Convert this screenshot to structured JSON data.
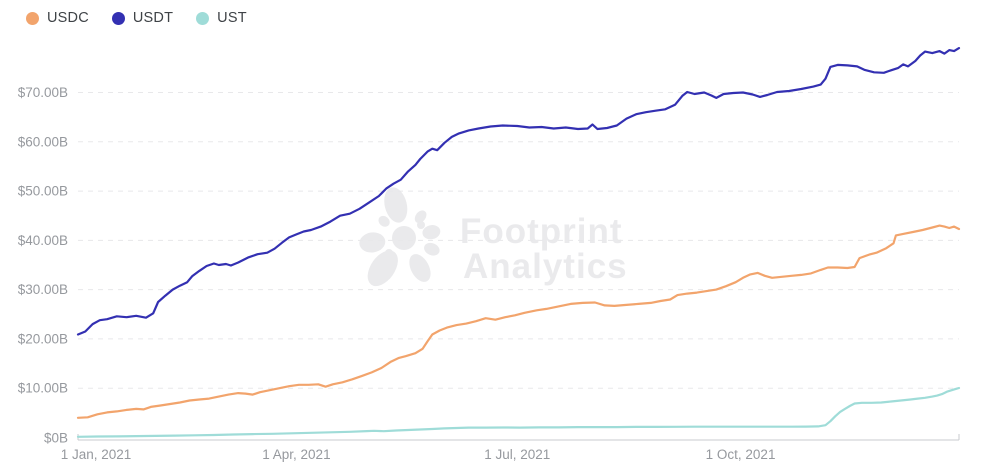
{
  "colors": {
    "usdc": "#F2A46C",
    "usdt": "#3330B2",
    "ust": "#9FDCD8",
    "axis_label": "#96999E",
    "axis_line": "#C9CBCF",
    "grid_line": "#E8E8EA",
    "legend_text": "#3F4347",
    "watermark": "#EAEAEC",
    "background": "#FFFFFF"
  },
  "legend": {
    "items": [
      {
        "label": "USDC",
        "color": "#F2A46C"
      },
      {
        "label": "USDT",
        "color": "#3330B2"
      },
      {
        "label": "UST",
        "color": "#9FDCD8"
      }
    ]
  },
  "watermark": {
    "line1": "Footprint",
    "line2": "Analytics"
  },
  "chart_data": {
    "type": "line",
    "title": "",
    "unit": "USD billions (market cap)",
    "grid": "dashed horizontal gridlines",
    "legend_position": "top-left",
    "x_axis": {
      "tick_labels": [
        "1 Jan, 2021",
        "1 Apr, 2021",
        "1 Jul, 2021",
        "1 Oct, 2021"
      ],
      "tick_days": [
        0,
        90,
        181,
        273
      ],
      "range_days": [
        0,
        363
      ]
    },
    "y_axis": {
      "tick_labels": [
        "$0B",
        "$10.00B",
        "$20.00B",
        "$30.00B",
        "$40.00B",
        "$50.00B",
        "$60.00B",
        "$70.00B"
      ],
      "tick_values": [
        0,
        10,
        20,
        30,
        40,
        50,
        60,
        70
      ],
      "ylim": [
        0,
        80
      ]
    },
    "series": [
      {
        "name": "USDT",
        "color": "#3330B2",
        "points": [
          [
            0,
            20.9
          ],
          [
            3,
            21.5
          ],
          [
            6,
            23.0
          ],
          [
            9,
            23.8
          ],
          [
            12,
            24.0
          ],
          [
            16,
            24.6
          ],
          [
            20,
            24.4
          ],
          [
            24,
            24.7
          ],
          [
            28,
            24.3
          ],
          [
            31,
            25.2
          ],
          [
            33,
            27.5
          ],
          [
            36,
            28.8
          ],
          [
            39,
            30.0
          ],
          [
            42,
            30.8
          ],
          [
            45,
            31.5
          ],
          [
            47,
            32.7
          ],
          [
            50,
            33.8
          ],
          [
            53,
            34.8
          ],
          [
            56,
            35.3
          ],
          [
            58,
            35.0
          ],
          [
            61,
            35.2
          ],
          [
            63,
            34.9
          ],
          [
            66,
            35.5
          ],
          [
            70,
            36.5
          ],
          [
            74,
            37.2
          ],
          [
            78,
            37.5
          ],
          [
            81,
            38.3
          ],
          [
            84,
            39.5
          ],
          [
            87,
            40.6
          ],
          [
            90,
            41.2
          ],
          [
            93,
            41.8
          ],
          [
            96,
            42.1
          ],
          [
            100,
            42.8
          ],
          [
            104,
            43.8
          ],
          [
            108,
            45.0
          ],
          [
            112,
            45.4
          ],
          [
            116,
            46.4
          ],
          [
            120,
            47.7
          ],
          [
            124,
            49.0
          ],
          [
            127,
            50.5
          ],
          [
            130,
            51.5
          ],
          [
            133,
            52.3
          ],
          [
            136,
            54.0
          ],
          [
            139,
            55.3
          ],
          [
            141,
            56.5
          ],
          [
            144,
            58.0
          ],
          [
            146,
            58.6
          ],
          [
            148,
            58.3
          ],
          [
            151,
            59.8
          ],
          [
            154,
            61.0
          ],
          [
            157,
            61.7
          ],
          [
            161,
            62.3
          ],
          [
            165,
            62.7
          ],
          [
            170,
            63.1
          ],
          [
            175,
            63.3
          ],
          [
            181,
            63.2
          ],
          [
            186,
            62.9
          ],
          [
            191,
            63.0
          ],
          [
            196,
            62.7
          ],
          [
            201,
            62.9
          ],
          [
            206,
            62.6
          ],
          [
            210,
            62.7
          ],
          [
            212,
            63.5
          ],
          [
            214,
            62.6
          ],
          [
            218,
            62.8
          ],
          [
            222,
            63.3
          ],
          [
            226,
            64.7
          ],
          [
            230,
            65.6
          ],
          [
            234,
            66.0
          ],
          [
            238,
            66.3
          ],
          [
            242,
            66.6
          ],
          [
            246,
            67.5
          ],
          [
            249,
            69.3
          ],
          [
            251,
            70.1
          ],
          [
            254,
            69.7
          ],
          [
            258,
            70.0
          ],
          [
            261,
            69.4
          ],
          [
            263,
            68.9
          ],
          [
            266,
            69.7
          ],
          [
            270,
            69.9
          ],
          [
            274,
            70.0
          ],
          [
            278,
            69.6
          ],
          [
            281,
            69.1
          ],
          [
            284,
            69.5
          ],
          [
            288,
            70.1
          ],
          [
            293,
            70.3
          ],
          [
            298,
            70.7
          ],
          [
            303,
            71.2
          ],
          [
            306,
            71.6
          ],
          [
            308,
            72.8
          ],
          [
            310,
            75.2
          ],
          [
            313,
            75.6
          ],
          [
            317,
            75.5
          ],
          [
            321,
            75.3
          ],
          [
            324,
            74.6
          ],
          [
            328,
            74.1
          ],
          [
            332,
            74.0
          ],
          [
            335,
            74.5
          ],
          [
            338,
            75.0
          ],
          [
            340,
            75.7
          ],
          [
            342,
            75.3
          ],
          [
            345,
            76.4
          ],
          [
            347,
            77.5
          ],
          [
            349,
            78.3
          ],
          [
            352,
            78.0
          ],
          [
            355,
            78.4
          ],
          [
            357,
            77.9
          ],
          [
            359,
            78.6
          ],
          [
            361,
            78.4
          ],
          [
            363,
            79.0
          ]
        ]
      },
      {
        "name": "USDC",
        "color": "#F2A46C",
        "points": [
          [
            0,
            4.0
          ],
          [
            4,
            4.1
          ],
          [
            8,
            4.7
          ],
          [
            12,
            5.1
          ],
          [
            16,
            5.3
          ],
          [
            20,
            5.6
          ],
          [
            24,
            5.8
          ],
          [
            27,
            5.7
          ],
          [
            30,
            6.2
          ],
          [
            34,
            6.5
          ],
          [
            38,
            6.8
          ],
          [
            42,
            7.1
          ],
          [
            46,
            7.5
          ],
          [
            50,
            7.7
          ],
          [
            54,
            7.9
          ],
          [
            58,
            8.3
          ],
          [
            62,
            8.7
          ],
          [
            66,
            9.0
          ],
          [
            69,
            8.9
          ],
          [
            72,
            8.7
          ],
          [
            75,
            9.2
          ],
          [
            79,
            9.6
          ],
          [
            83,
            10.0
          ],
          [
            87,
            10.4
          ],
          [
            91,
            10.7
          ],
          [
            95,
            10.7
          ],
          [
            99,
            10.8
          ],
          [
            102,
            10.3
          ],
          [
            105,
            10.8
          ],
          [
            109,
            11.2
          ],
          [
            113,
            11.8
          ],
          [
            117,
            12.5
          ],
          [
            121,
            13.2
          ],
          [
            125,
            14.1
          ],
          [
            129,
            15.4
          ],
          [
            132,
            16.1
          ],
          [
            135,
            16.5
          ],
          [
            139,
            17.1
          ],
          [
            142,
            18.0
          ],
          [
            144,
            19.5
          ],
          [
            146,
            20.9
          ],
          [
            149,
            21.7
          ],
          [
            152,
            22.3
          ],
          [
            156,
            22.8
          ],
          [
            160,
            23.1
          ],
          [
            164,
            23.6
          ],
          [
            168,
            24.2
          ],
          [
            172,
            23.9
          ],
          [
            176,
            24.4
          ],
          [
            180,
            24.8
          ],
          [
            184,
            25.3
          ],
          [
            189,
            25.8
          ],
          [
            193,
            26.1
          ],
          [
            198,
            26.6
          ],
          [
            203,
            27.1
          ],
          [
            208,
            27.3
          ],
          [
            213,
            27.4
          ],
          [
            217,
            26.8
          ],
          [
            221,
            26.7
          ],
          [
            226,
            26.9
          ],
          [
            231,
            27.1
          ],
          [
            236,
            27.3
          ],
          [
            240,
            27.7
          ],
          [
            244,
            28.0
          ],
          [
            247,
            28.9
          ],
          [
            251,
            29.2
          ],
          [
            255,
            29.4
          ],
          [
            259,
            29.7
          ],
          [
            263,
            30.0
          ],
          [
            267,
            30.7
          ],
          [
            271,
            31.5
          ],
          [
            274,
            32.4
          ],
          [
            277,
            33.1
          ],
          [
            280,
            33.4
          ],
          [
            283,
            32.8
          ],
          [
            286,
            32.4
          ],
          [
            290,
            32.6
          ],
          [
            294,
            32.8
          ],
          [
            298,
            33.0
          ],
          [
            302,
            33.3
          ],
          [
            306,
            34.0
          ],
          [
            309,
            34.5
          ],
          [
            313,
            34.5
          ],
          [
            317,
            34.4
          ],
          [
            320,
            34.6
          ],
          [
            322,
            36.4
          ],
          [
            326,
            37.1
          ],
          [
            329,
            37.5
          ],
          [
            333,
            38.4
          ],
          [
            336,
            39.4
          ],
          [
            337,
            41.0
          ],
          [
            340,
            41.3
          ],
          [
            344,
            41.7
          ],
          [
            348,
            42.1
          ],
          [
            352,
            42.6
          ],
          [
            355,
            43.0
          ],
          [
            357,
            42.8
          ],
          [
            359,
            42.5
          ],
          [
            361,
            42.8
          ],
          [
            363,
            42.3
          ]
        ]
      },
      {
        "name": "UST",
        "color": "#9FDCD8",
        "points": [
          [
            0,
            0.15
          ],
          [
            8,
            0.2
          ],
          [
            16,
            0.22
          ],
          [
            24,
            0.28
          ],
          [
            32,
            0.32
          ],
          [
            40,
            0.38
          ],
          [
            48,
            0.45
          ],
          [
            56,
            0.5
          ],
          [
            64,
            0.6
          ],
          [
            72,
            0.68
          ],
          [
            80,
            0.75
          ],
          [
            88,
            0.85
          ],
          [
            96,
            0.95
          ],
          [
            104,
            1.05
          ],
          [
            112,
            1.15
          ],
          [
            119,
            1.3
          ],
          [
            122,
            1.35
          ],
          [
            126,
            1.28
          ],
          [
            131,
            1.42
          ],
          [
            136,
            1.52
          ],
          [
            141,
            1.62
          ],
          [
            146,
            1.72
          ],
          [
            151,
            1.85
          ],
          [
            156,
            1.92
          ],
          [
            161,
            2.0
          ],
          [
            168,
            2.0
          ],
          [
            175,
            2.02
          ],
          [
            182,
            2.0
          ],
          [
            190,
            2.05
          ],
          [
            198,
            2.05
          ],
          [
            206,
            2.1
          ],
          [
            214,
            2.1
          ],
          [
            222,
            2.12
          ],
          [
            230,
            2.15
          ],
          [
            238,
            2.15
          ],
          [
            246,
            2.18
          ],
          [
            254,
            2.2
          ],
          [
            262,
            2.2
          ],
          [
            270,
            2.2
          ],
          [
            278,
            2.2
          ],
          [
            286,
            2.2
          ],
          [
            294,
            2.2
          ],
          [
            300,
            2.22
          ],
          [
            305,
            2.25
          ],
          [
            308,
            2.5
          ],
          [
            310,
            3.3
          ],
          [
            312,
            4.3
          ],
          [
            314,
            5.2
          ],
          [
            316,
            5.8
          ],
          [
            318,
            6.4
          ],
          [
            320,
            6.9
          ],
          [
            323,
            7.05
          ],
          [
            327,
            7.05
          ],
          [
            331,
            7.1
          ],
          [
            335,
            7.3
          ],
          [
            339,
            7.5
          ],
          [
            343,
            7.7
          ],
          [
            346,
            7.9
          ],
          [
            349,
            8.05
          ],
          [
            352,
            8.3
          ],
          [
            354,
            8.5
          ],
          [
            356,
            8.8
          ],
          [
            358,
            9.3
          ],
          [
            360,
            9.6
          ],
          [
            362,
            9.9
          ],
          [
            363,
            10.05
          ]
        ]
      }
    ]
  }
}
